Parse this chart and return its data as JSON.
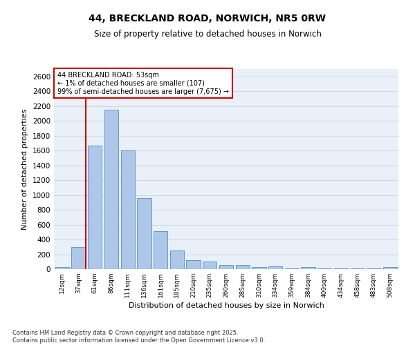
{
  "title": "44, BRECKLAND ROAD, NORWICH, NR5 0RW",
  "subtitle": "Size of property relative to detached houses in Norwich",
  "xlabel": "Distribution of detached houses by size in Norwich",
  "ylabel": "Number of detached properties",
  "footer_line1": "Contains HM Land Registry data © Crown copyright and database right 2025.",
  "footer_line2": "Contains public sector information licensed under the Open Government Licence v3.0.",
  "categories": [
    "12sqm",
    "37sqm",
    "61sqm",
    "86sqm",
    "111sqm",
    "136sqm",
    "161sqm",
    "185sqm",
    "210sqm",
    "235sqm",
    "260sqm",
    "285sqm",
    "310sqm",
    "334sqm",
    "359sqm",
    "384sqm",
    "409sqm",
    "434sqm",
    "458sqm",
    "483sqm",
    "508sqm"
  ],
  "values": [
    30,
    300,
    1670,
    2150,
    1600,
    960,
    510,
    250,
    125,
    100,
    55,
    55,
    30,
    35,
    10,
    30,
    10,
    5,
    10,
    5,
    30
  ],
  "bar_color": "#aec6e8",
  "bar_edge_color": "#5b9bd5",
  "vline_x_idx": 1,
  "vline_color": "#cc0000",
  "annotation_text": "44 BRECKLAND ROAD: 53sqm\n← 1% of detached houses are smaller (107)\n99% of semi-detached houses are larger (7,675) →",
  "annotation_box_color": "#ffffff",
  "annotation_box_edge": "#cc0000",
  "ylim": [
    0,
    2700
  ],
  "yticks": [
    0,
    200,
    400,
    600,
    800,
    1000,
    1200,
    1400,
    1600,
    1800,
    2000,
    2200,
    2400,
    2600
  ],
  "grid_color": "#d0d8e8",
  "bg_color": "#eaf0f8"
}
